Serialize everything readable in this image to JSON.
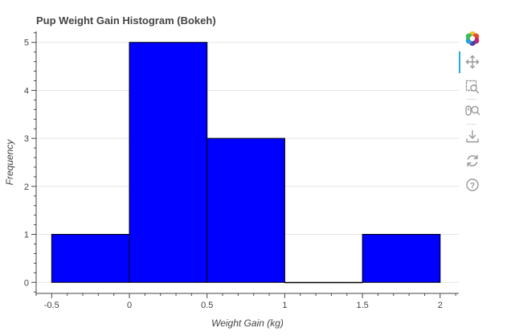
{
  "chart_data": {
    "type": "bar",
    "title": "Pup Weight Gain Histogram (Bokeh)",
    "xlabel": "Weight Gain (kg)",
    "ylabel": "Frequency",
    "bins": [
      {
        "left": -0.5,
        "right": 0.0,
        "value": 1
      },
      {
        "left": 0.0,
        "right": 0.5,
        "value": 5
      },
      {
        "left": 0.5,
        "right": 1.0,
        "value": 3
      },
      {
        "left": 1.0,
        "right": 1.5,
        "value": 0
      },
      {
        "left": 1.5,
        "right": 2.0,
        "value": 1
      }
    ],
    "xlim": [
      -0.6,
      2.12
    ],
    "ylim": [
      -0.23,
      5.23
    ],
    "x_ticks": [
      -0.5,
      0,
      0.5,
      1,
      1.5,
      2
    ],
    "x_tick_labels": [
      "-0.5",
      "0",
      "0.5",
      "1",
      "1.5",
      "2"
    ],
    "y_ticks": [
      0,
      1,
      2,
      3,
      4,
      5
    ],
    "y_tick_labels": [
      "0",
      "1",
      "2",
      "3",
      "4",
      "5"
    ],
    "fill_color": "#0000ff",
    "line_color": "#000000",
    "grid": true
  },
  "toolbar": {
    "tools": [
      "bokeh-logo-icon",
      "pan-icon",
      "box-zoom-icon",
      "wheel-zoom-icon",
      "save-icon",
      "reset-icon",
      "help-icon"
    ],
    "active_tool": "pan-icon",
    "icon_color": "#999999"
  }
}
